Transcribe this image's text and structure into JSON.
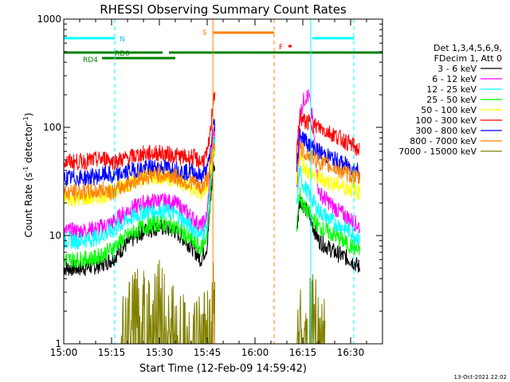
{
  "chart_data": {
    "type": "line",
    "title": "RHESSI Observing Summary Count Rates",
    "xlabel": "Start Time (12-Feb-09 14:59:42)",
    "ylabel_main": "Count Rate (s",
    "ylabel_sup1": "-1",
    "ylabel_mid": " detector",
    "ylabel_sup2": "-1",
    "ylabel_end": ")",
    "x_unit": "minutes after 15:00 UT",
    "xlim": [
      0,
      100
    ],
    "ylim": [
      1,
      1000
    ],
    "yscale": "log",
    "xticks": [
      {
        "t": 0,
        "label": "15:00"
      },
      {
        "t": 15,
        "label": "15:15"
      },
      {
        "t": 30,
        "label": "15:30"
      },
      {
        "t": 45,
        "label": "15:45"
      },
      {
        "t": 60,
        "label": "16:00"
      },
      {
        "t": 75,
        "label": "16:15"
      },
      {
        "t": 90,
        "label": "16:30"
      }
    ],
    "yticks": [
      {
        "v": 1,
        "label": "1"
      },
      {
        "v": 10,
        "label": "10"
      },
      {
        "v": 100,
        "label": "100"
      },
      {
        "v": 1000,
        "label": "1000"
      }
    ],
    "legend_header": [
      "Det 1,3,4,5,6,9,",
      "FDecim 1, Att 0"
    ],
    "legend_placement": "right",
    "series": [
      {
        "name": "3 - 6 keV",
        "color": "#000000",
        "x": [
          0,
          5,
          10,
          15,
          20,
          25,
          30,
          35,
          40,
          43,
          45,
          46,
          47,
          73,
          74,
          75,
          77,
          80,
          85,
          90,
          93
        ],
        "y": [
          5,
          5,
          5.2,
          6,
          8.5,
          11,
          12,
          11,
          8,
          6,
          8,
          20,
          45,
          10,
          22,
          20,
          15,
          9,
          7,
          6,
          5
        ]
      },
      {
        "name": "6 - 12 keV",
        "color": "#ff00ff",
        "x": [
          0,
          5,
          10,
          15,
          20,
          25,
          30,
          35,
          40,
          43,
          45,
          46,
          47,
          73,
          74,
          75,
          76,
          77,
          78,
          80,
          85,
          90,
          93
        ],
        "y": [
          11,
          11,
          11.5,
          13,
          17,
          20,
          21,
          20,
          15,
          12,
          15,
          45,
          90,
          22,
          120,
          170,
          195,
          190,
          120,
          25,
          18,
          14,
          12
        ]
      },
      {
        "name": "12 - 25 keV",
        "color": "#00ffff",
        "x": [
          0,
          5,
          10,
          15,
          20,
          25,
          30,
          35,
          40,
          43,
          45,
          46,
          47,
          73,
          74,
          75,
          77,
          80,
          85,
          90,
          93
        ],
        "y": [
          9,
          9,
          9.5,
          11,
          14,
          16.5,
          17,
          16,
          12,
          10,
          12,
          30,
          70,
          18,
          40,
          30,
          24,
          17,
          13,
          11,
          9
        ]
      },
      {
        "name": "25 - 50 keV",
        "color": "#00ff00",
        "x": [
          0,
          5,
          10,
          15,
          20,
          25,
          30,
          35,
          40,
          43,
          45,
          46,
          47,
          73,
          74,
          75,
          77,
          80,
          85,
          90,
          93
        ],
        "y": [
          6,
          6,
          6.2,
          7.5,
          10,
          12,
          13,
          12,
          9,
          7.5,
          10,
          25,
          55,
          12,
          25,
          19,
          16,
          12,
          10,
          8,
          7
        ]
      },
      {
        "name": "50 - 100 keV",
        "color": "#ffff00",
        "x": [
          0,
          5,
          10,
          15,
          20,
          25,
          30,
          35,
          40,
          43,
          45,
          46,
          47,
          73,
          74,
          75,
          77,
          80,
          85,
          90,
          93
        ],
        "y": [
          22,
          22,
          22.5,
          25,
          30,
          34,
          35,
          33,
          27,
          24,
          28,
          40,
          55,
          27,
          60,
          45,
          38,
          34,
          30,
          27,
          25
        ]
      },
      {
        "name": "100 - 300 keV",
        "color": "#ff0000",
        "x": [
          0,
          5,
          10,
          14,
          15,
          20,
          25,
          30,
          35,
          39,
          40,
          43,
          45,
          46,
          47,
          73,
          74,
          75,
          77,
          80,
          85,
          90,
          93
        ],
        "y": [
          48,
          48,
          50,
          52,
          48,
          52,
          57,
          58,
          55,
          52,
          54,
          48,
          55,
          90,
          200,
          48,
          130,
          115,
          110,
          100,
          85,
          70,
          60
        ]
      },
      {
        "name": "300 - 800 keV",
        "color": "#0000ff",
        "x": [
          0,
          5,
          10,
          14,
          15,
          20,
          25,
          30,
          35,
          39,
          40,
          43,
          45,
          46,
          47,
          73,
          74,
          75,
          77,
          80,
          85,
          90,
          93
        ],
        "y": [
          34,
          34,
          35,
          37,
          34,
          39,
          42,
          43,
          41,
          38,
          40,
          35,
          40,
          60,
          110,
          35,
          90,
          80,
          70,
          60,
          50,
          43,
          40
        ]
      },
      {
        "name": "800 - 7000 keV",
        "color": "#ff8000",
        "x": [
          0,
          5,
          10,
          14,
          15,
          20,
          25,
          30,
          35,
          39,
          40,
          43,
          45,
          46,
          47,
          73,
          74,
          75,
          77,
          80,
          85,
          90,
          93
        ],
        "y": [
          25,
          25,
          25.5,
          27,
          25,
          30,
          35,
          37,
          35,
          30,
          32,
          27,
          33,
          45,
          70,
          26,
          65,
          60,
          55,
          48,
          42,
          36,
          33
        ]
      },
      {
        "name": "7000 - 15000 keV",
        "color": "#808000",
        "x": [
          18,
          20,
          22,
          24,
          26,
          28,
          30,
          32,
          34,
          36,
          38,
          46,
          47,
          48,
          73,
          74,
          75,
          76,
          78,
          80,
          82
        ],
        "y": [
          1.5,
          2,
          2.3,
          3,
          2.6,
          2.2,
          3,
          2.5,
          2,
          1.6,
          1.4,
          1.8,
          3,
          8,
          1.6,
          2.5,
          2,
          3,
          2.4,
          1.8,
          1.4
        ]
      }
    ],
    "annotations": [
      {
        "label": "N",
        "color": "#00c8ff"
      },
      {
        "label": "RD0",
        "color": "#008000"
      },
      {
        "label": "RD4",
        "color": "#008000"
      },
      {
        "label": "S",
        "color": "#ff8000"
      },
      {
        "label": "F",
        "color": "#ff0000"
      }
    ],
    "bars": {
      "night": [
        [
          0,
          16
        ],
        [
          78,
          91
        ]
      ],
      "saa": [
        [
          47,
          66
        ]
      ],
      "rd0": [
        [
          0,
          31
        ],
        [
          33,
          100
        ]
      ],
      "rd4": [
        [
          12,
          35
        ]
      ],
      "flare_mark": [
        70.5,
        71.5
      ]
    },
    "vlines": [
      {
        "t": 0,
        "color": "#00ffff",
        "style": "solid"
      },
      {
        "t": 16,
        "color": "#00ffff",
        "style": "dash"
      },
      {
        "t": 46.8,
        "color": "#ff8000",
        "style": "solid"
      },
      {
        "t": 66,
        "color": "#ff8000",
        "style": "dash"
      },
      {
        "t": 77.5,
        "color": "#00ffff",
        "style": "solid"
      },
      {
        "t": 91,
        "color": "#00ffff",
        "style": "dash"
      }
    ],
    "footer_timestamp": "13-Oct-2021 22:02"
  }
}
